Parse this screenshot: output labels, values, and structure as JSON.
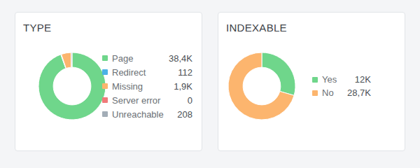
{
  "chart_data": [
    {
      "type": "pie",
      "title": "TYPE",
      "categories": [
        "Page",
        "Redirect",
        "Missing",
        "Server error",
        "Unreachable"
      ],
      "values": [
        38400,
        112,
        1900,
        0,
        208
      ],
      "value_labels": [
        "38,4K",
        "112",
        "1,9K",
        "0",
        "208"
      ],
      "colors": [
        "#6fd68b",
        "#4bb2e6",
        "#fcb56e",
        "#f07a7a",
        "#a3adb7"
      ],
      "legend": "right"
    },
    {
      "type": "pie",
      "title": "INDEXABLE",
      "categories": [
        "Yes",
        "No"
      ],
      "values": [
        12000,
        28700
      ],
      "value_labels": [
        "12K",
        "28,7K"
      ],
      "colors": [
        "#6fd68b",
        "#fcb56e"
      ],
      "legend": "right"
    }
  ]
}
